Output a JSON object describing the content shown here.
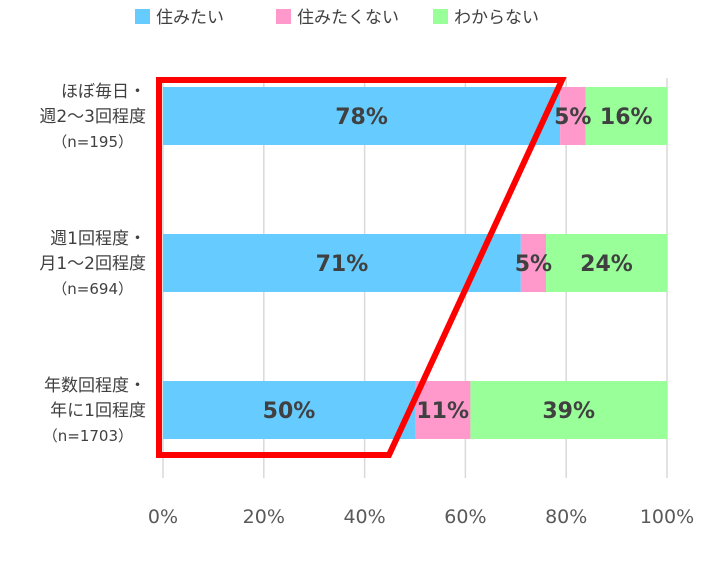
{
  "chart_data": {
    "type": "bar",
    "orientation": "horizontal",
    "stacked": true,
    "percent": true,
    "categories": [
      {
        "lines": [
          "ほぼ毎日・",
          "週2～3回程度"
        ],
        "n": "（n=195）"
      },
      {
        "lines": [
          "週1回程度・",
          "月1～2回程度"
        ],
        "n": "（n=694）"
      },
      {
        "lines": [
          "年数回程度・",
          "年に1回程度"
        ],
        "n": "（n=1703）"
      }
    ],
    "series": [
      {
        "name": "住みたい",
        "color": "#66ccff",
        "values": [
          78,
          71,
          50
        ],
        "labels": [
          "78%",
          "71%",
          "50%"
        ]
      },
      {
        "name": "住みたくない",
        "color": "#ff99cc",
        "values": [
          5,
          5,
          11
        ],
        "labels": [
          "5%",
          "5%",
          "11%"
        ]
      },
      {
        "name": "わからない",
        "color": "#99ff99",
        "values": [
          16,
          24,
          39
        ],
        "labels": [
          "16%",
          "24%",
          "39%"
        ]
      }
    ],
    "xlim": [
      0,
      100
    ],
    "xticks": [
      0,
      20,
      40,
      60,
      80,
      100
    ],
    "xtick_labels": [
      "0%",
      "20%",
      "40%",
      "60%",
      "80%",
      "100%"
    ],
    "grid": true,
    "legend": "top",
    "annotation": {
      "shape": "trapezoid-outline",
      "color": "#ff0000"
    }
  }
}
